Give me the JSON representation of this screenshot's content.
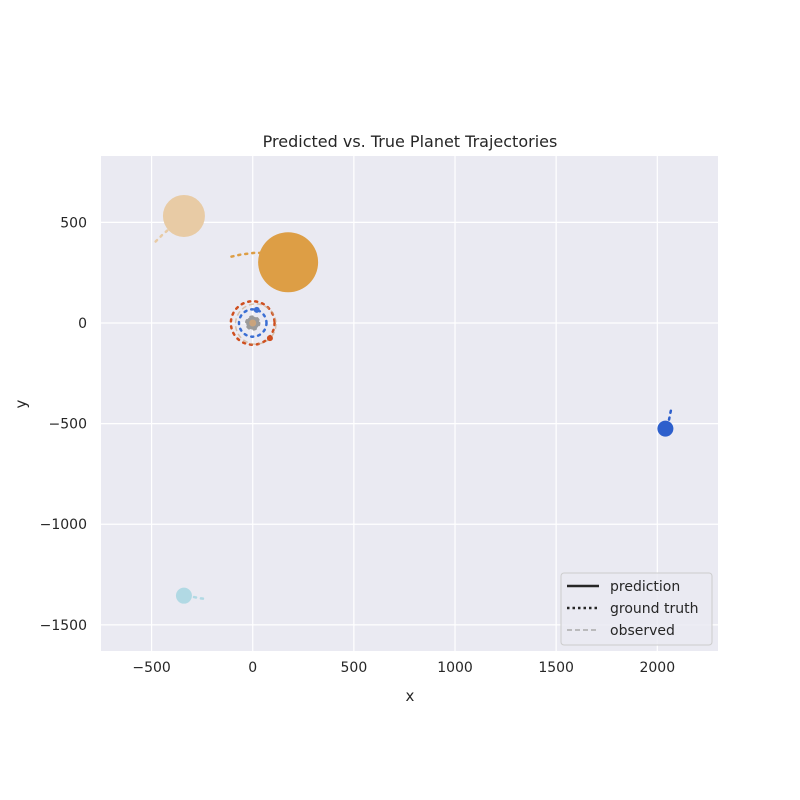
{
  "chart_data": {
    "type": "scatter",
    "title": "Predicted vs. True Planet Trajectories",
    "xlabel": "x",
    "ylabel": "y",
    "xlim": [
      -750,
      2300
    ],
    "ylim": [
      -1630,
      830
    ],
    "xticks": [
      -500,
      0,
      500,
      1000,
      1500,
      2000
    ],
    "yticks": [
      -1500,
      -1000,
      -500,
      0,
      500
    ],
    "xtick_labels": [
      "−500",
      "0",
      "500",
      "1000",
      "1500",
      "2000"
    ],
    "ytick_labels": [
      "−1500",
      "−1000",
      "−500",
      "0",
      "500"
    ],
    "grid": true,
    "legend_position": "lower-right",
    "legend": [
      {
        "label": "prediction",
        "style": "solid"
      },
      {
        "label": "ground truth",
        "style": "dotted"
      },
      {
        "label": "observed",
        "style": "dashed"
      }
    ],
    "colors": {
      "plot_bg": "#eaeaf2",
      "grid": "#ffffff",
      "text": "#262626",
      "legend_line": "#262626",
      "legend_observed": "#aaaaaa"
    },
    "series": [
      {
        "color": "#e8cba5",
        "size": 42,
        "opacity": 1,
        "position": [
          -340,
          532
        ],
        "ground_truth": [
          [
            -480,
            405
          ],
          [
            -445,
            440
          ],
          [
            -410,
            470
          ],
          [
            -380,
            500
          ]
        ]
      },
      {
        "color": "#dd9e45",
        "size": 60,
        "opacity": 1,
        "position": [
          175,
          302
        ],
        "ground_truth": [
          [
            -105,
            330
          ],
          [
            -60,
            340
          ],
          [
            -20,
            345
          ],
          [
            20,
            350
          ],
          [
            60,
            345
          ]
        ]
      },
      {
        "color": "#cf4f1f",
        "size": 6,
        "opacity": 1,
        "position": [
          85,
          -75
        ],
        "ground_truth_circle": {
          "cx": 0,
          "cy": 0,
          "r": 108
        }
      },
      {
        "color": "#3b6fd4",
        "size": 6,
        "opacity": 1,
        "position": [
          20,
          65
        ],
        "ground_truth_circle": {
          "cx": 0,
          "cy": 0,
          "r": 68
        }
      },
      {
        "color": "#c9a37c",
        "size": 8,
        "opacity": 1,
        "position": [
          0,
          0
        ],
        "observed_circle": {
          "cx": 15,
          "cy": -5,
          "r": 100
        }
      },
      {
        "color": "#9a9a9a",
        "size": 14,
        "opacity": 1,
        "position": [
          0,
          0
        ],
        "ground_truth_circle": {
          "cx": 0,
          "cy": 0,
          "r": 32
        }
      },
      {
        "color": "#2d5fcc",
        "size": 16,
        "opacity": 1,
        "position": [
          2040,
          -525
        ],
        "ground_truth": [
          [
            2058,
            -480
          ],
          [
            2065,
            -445
          ],
          [
            2072,
            -412
          ]
        ]
      },
      {
        "color": "#b1d9e4",
        "size": 16,
        "opacity": 1,
        "position": [
          -340,
          -1355
        ],
        "ground_truth": [
          [
            -290,
            -1362
          ],
          [
            -260,
            -1368
          ],
          [
            -230,
            -1372
          ]
        ]
      }
    ]
  }
}
